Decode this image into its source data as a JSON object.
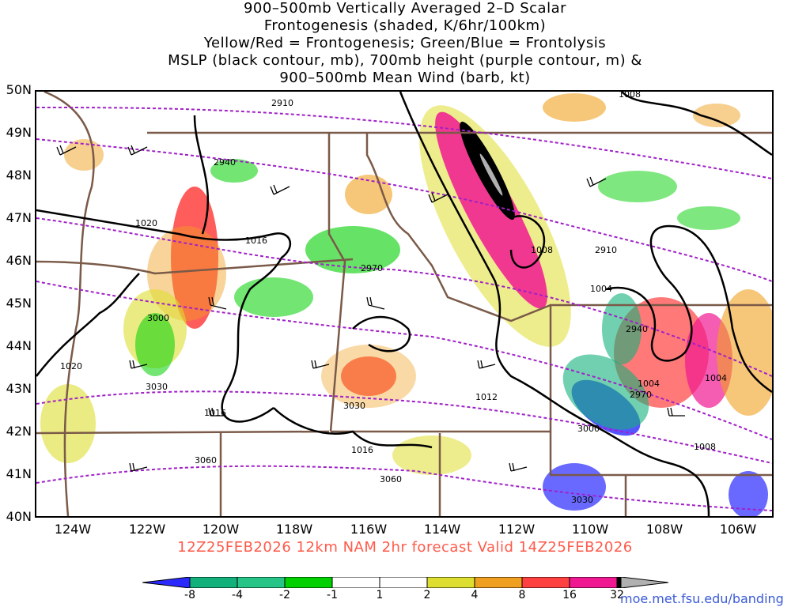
{
  "title": {
    "lines": [
      "900–500mb Vertically Averaged 2–D Scalar",
      "Frontogenesis (shaded, K/6hr/100km)",
      "Yellow/Red = Frontogenesis;  Green/Blue = Frontolysis",
      "MSLP (black contour, mb), 700mb height (purple contour, m) &",
      "900–500mb Mean Wind (barb, kt)"
    ]
  },
  "axes": {
    "lat_labels": [
      "50N",
      "49N",
      "48N",
      "47N",
      "46N",
      "45N",
      "44N",
      "43N",
      "42N",
      "41N",
      "40N"
    ],
    "lon_labels": [
      "124W",
      "122W",
      "120W",
      "118W",
      "116W",
      "114W",
      "112W",
      "110W",
      "108W",
      "106W"
    ],
    "lat_range": [
      40,
      50
    ],
    "lon_range": [
      -125,
      -105
    ]
  },
  "caption": "12Z25FEB2026 12km NAM 2hr forecast Valid 14Z25FEB2026",
  "colorbar": {
    "labels": [
      "-8",
      "-4",
      "-2",
      "-1",
      "1",
      "2",
      "4",
      "8",
      "16",
      "32"
    ],
    "colors": [
      "#2a2aff",
      "#12b07a",
      "#26c486",
      "#00d000",
      "#ffffff",
      "#dede30",
      "#f0a020",
      "#ff4040",
      "#f01890",
      "#000000",
      "#b0b0b0"
    ]
  },
  "contour_labels": {
    "mslp": [
      "1020",
      "1016",
      "1020",
      "1016",
      "1012",
      "1016",
      "1008",
      "1004",
      "1004",
      "1004",
      "1008",
      "1008"
    ],
    "height": [
      "2910",
      "2940",
      "2970",
      "3000",
      "3030",
      "3030",
      "3060",
      "3060",
      "2910",
      "2940",
      "2970",
      "3000",
      "3030"
    ]
  },
  "credit": "moe.met.fsu.edu/banding",
  "colors": {
    "mslp_contour": "#000000",
    "height_contour": "#a020c8",
    "state_border": "#7a5a48",
    "caption": "#ff5a4a"
  }
}
